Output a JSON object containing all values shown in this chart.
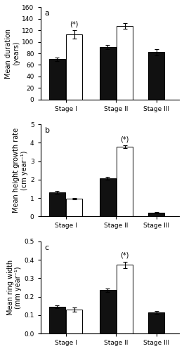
{
  "panels": [
    {
      "label": "a",
      "ylabel": "Mean duration\n(years)",
      "ylim": [
        0,
        160
      ],
      "yticks": [
        0,
        20,
        40,
        60,
        80,
        100,
        120,
        140,
        160
      ],
      "stages": [
        "Stage I",
        "Stage II",
        "Stage III"
      ],
      "black_vals": [
        70,
        91,
        82
      ],
      "black_errs": [
        3,
        4,
        5
      ],
      "white_vals": [
        113,
        128,
        null
      ],
      "white_errs": [
        7,
        5,
        null
      ],
      "star_stage": 0,
      "star_on_white": true
    },
    {
      "label": "b",
      "ylabel": "Mean height growth rate\n(cm year⁻¹)",
      "ylim": [
        0,
        5
      ],
      "yticks": [
        0,
        1,
        2,
        3,
        4,
        5
      ],
      "stages": [
        "Stage I",
        "Stage II",
        "Stage III"
      ],
      "black_vals": [
        1.3,
        2.07,
        0.2
      ],
      "black_errs": [
        0.08,
        0.08,
        0.04
      ],
      "white_vals": [
        0.97,
        3.78,
        null
      ],
      "white_errs": [
        0.05,
        0.07,
        null
      ],
      "star_stage": 1,
      "star_on_white": true
    },
    {
      "label": "c",
      "ylabel": "Mean ring width\n(mm year⁻¹)",
      "ylim": [
        0,
        0.5
      ],
      "yticks": [
        0.0,
        0.1,
        0.2,
        0.3,
        0.4,
        0.5
      ],
      "stages": [
        "Stage I",
        "Stage II",
        "Stage III"
      ],
      "black_vals": [
        0.145,
        0.235,
        0.115
      ],
      "black_errs": [
        0.008,
        0.01,
        0.008
      ],
      "white_vals": [
        0.13,
        0.372,
        null
      ],
      "white_errs": [
        0.01,
        0.018,
        null
      ],
      "star_stage": 1,
      "star_on_white": true
    }
  ],
  "bar_width": 0.32,
  "black_color": "#111111",
  "white_color": "#ffffff",
  "edge_color": "#000000",
  "background_color": "#ffffff",
  "fontsize": 7,
  "tick_fontsize": 6.5
}
